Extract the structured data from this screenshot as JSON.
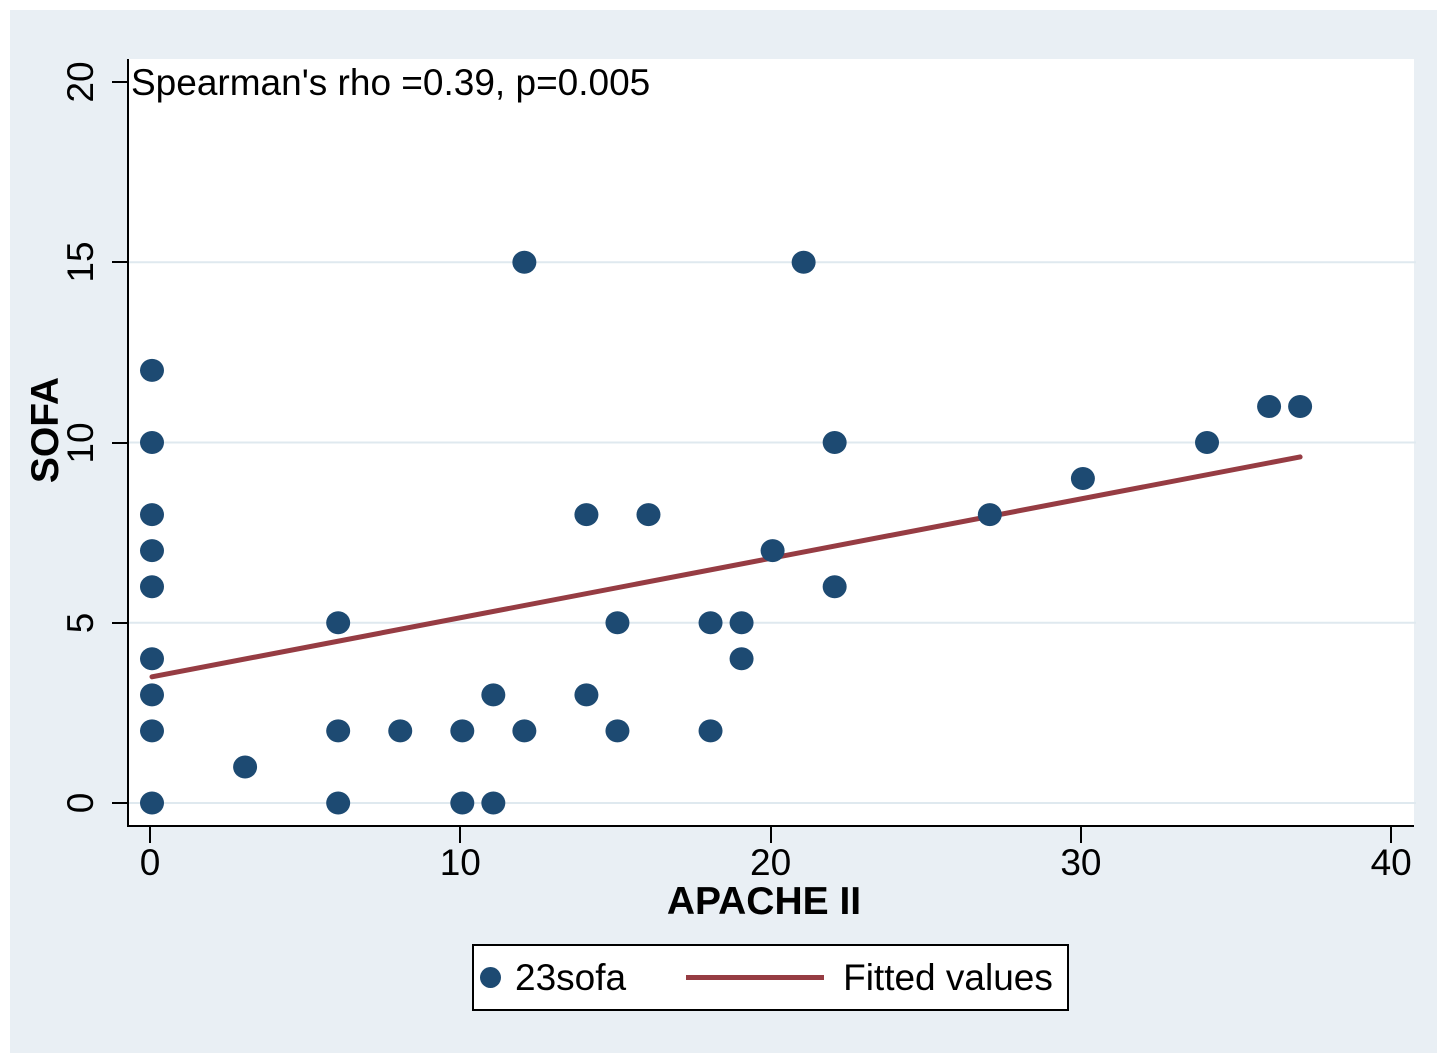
{
  "figure": {
    "annotation": "Spearman's rho =0.39, p=0.005"
  },
  "axes": {
    "x": {
      "label": "APACHE II",
      "tick_labels": [
        "0",
        "10",
        "20",
        "30",
        "40"
      ]
    },
    "y": {
      "label": "SOFA",
      "tick_labels": [
        "0",
        "5",
        "10",
        "15",
        "20"
      ]
    }
  },
  "legend": {
    "items": [
      {
        "marker": "dot",
        "label": "23sofa"
      },
      {
        "marker": "line",
        "label": "Fitted values"
      }
    ]
  },
  "colors": {
    "marker": "#1d4a72",
    "fit_line": "#963c43",
    "panel_background": "#e9eff4",
    "plot_background": "#ffffff",
    "gridline": "#dfe9ef",
    "axis": "#000000"
  },
  "chart_data": {
    "type": "scatter",
    "title": "Spearman's rho =0.39, p=0.005",
    "xlabel": "APACHE II",
    "ylabel": "SOFA",
    "xlim": [
      0,
      40.7
    ],
    "ylim": [
      -0.7,
      21.3
    ],
    "xticks": [
      0,
      10,
      20,
      30,
      40
    ],
    "yticks": [
      0,
      5,
      10,
      15,
      20
    ],
    "grid_y": [
      0,
      5,
      10,
      15
    ],
    "grid_on": true,
    "legend_position": "bottom-center",
    "stats": {
      "spearman_rho": 0.39,
      "p_value": 0.005
    },
    "series": [
      {
        "name": "23sofa",
        "type": "scatter",
        "points": [
          [
            0,
            0
          ],
          [
            0,
            2
          ],
          [
            0,
            3
          ],
          [
            0,
            4
          ],
          [
            0,
            6
          ],
          [
            0,
            7
          ],
          [
            0,
            8
          ],
          [
            0,
            10
          ],
          [
            0,
            12
          ],
          [
            3,
            1
          ],
          [
            6,
            0
          ],
          [
            6,
            2
          ],
          [
            6,
            5
          ],
          [
            8,
            2
          ],
          [
            10,
            0
          ],
          [
            10,
            2
          ],
          [
            11,
            0
          ],
          [
            11,
            3
          ],
          [
            12,
            2
          ],
          [
            12,
            15
          ],
          [
            14,
            3
          ],
          [
            14,
            8
          ],
          [
            15,
            2
          ],
          [
            15,
            5
          ],
          [
            16,
            8
          ],
          [
            18,
            2
          ],
          [
            18,
            5
          ],
          [
            19,
            4
          ],
          [
            19,
            5
          ],
          [
            20,
            7
          ],
          [
            21,
            15
          ],
          [
            22,
            6
          ],
          [
            22,
            10
          ],
          [
            27,
            8
          ],
          [
            30,
            9
          ],
          [
            34,
            10
          ],
          [
            36,
            11
          ],
          [
            37,
            11
          ]
        ]
      },
      {
        "name": "Fitted values",
        "type": "line",
        "endpoints": [
          [
            0,
            3.5
          ],
          [
            37,
            9.6
          ]
        ]
      }
    ]
  }
}
